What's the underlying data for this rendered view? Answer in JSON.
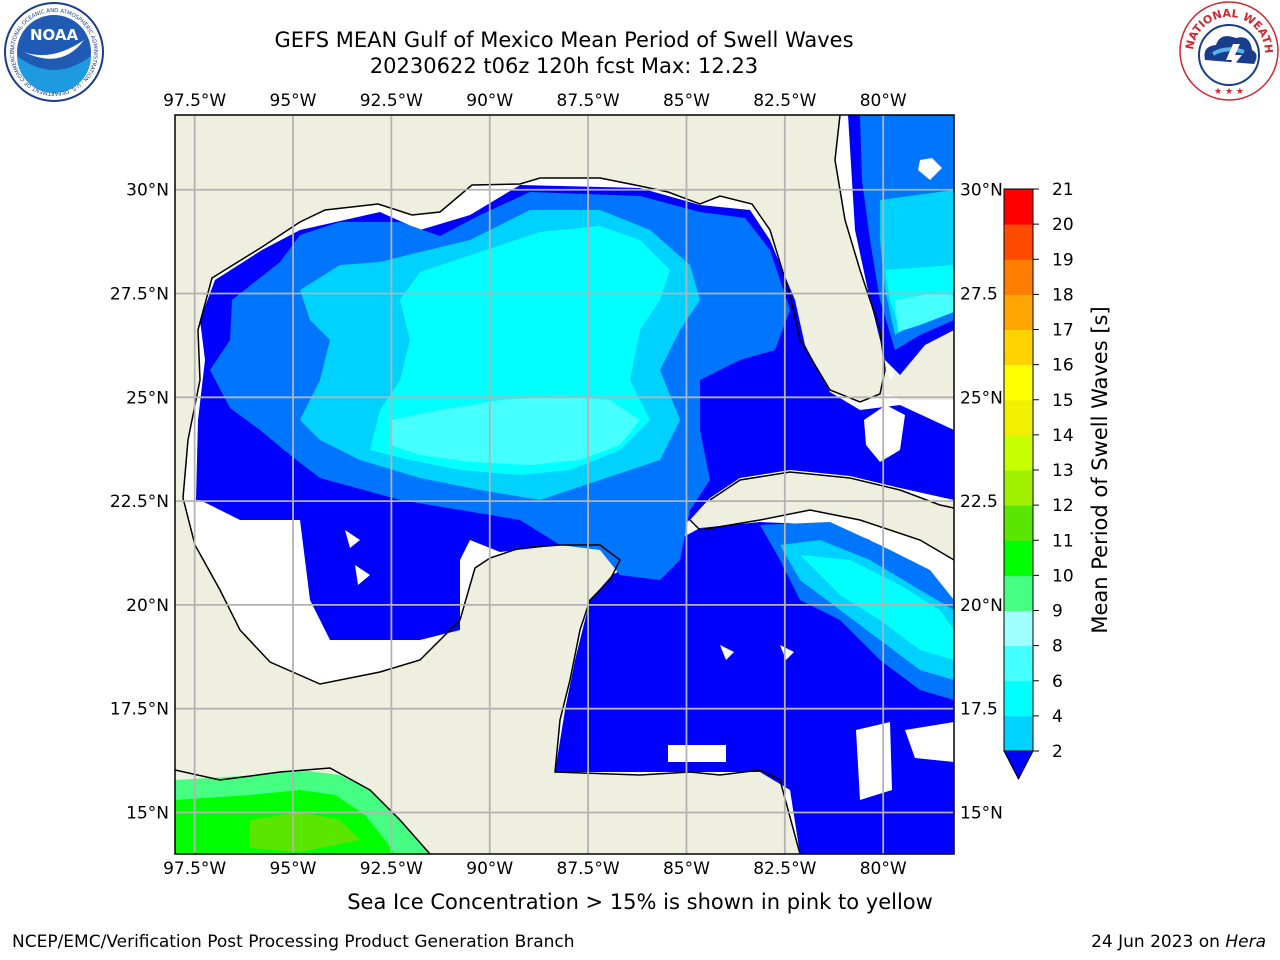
{
  "title": {
    "line1": "GEFS MEAN Gulf of Mexico Mean Period of Swell Waves",
    "line2": "20230622 t06z 120h fcst   Max: 12.23"
  },
  "map": {
    "lon_range": [
      -98.0,
      -78.2
    ],
    "lat_range": [
      14.0,
      31.8
    ],
    "lon_ticks": [
      "97.5°W",
      "95°W",
      "92.5°W",
      "90°W",
      "87.5°W",
      "85°W",
      "82.5°W",
      "80°W"
    ],
    "lat_ticks_left": [
      "30°N",
      "27.5°N",
      "25°N",
      "22.5°N",
      "20°N",
      "17.5°N",
      "15°N"
    ],
    "lat_ticks_right": [
      "30°N",
      "27.5",
      "25°N",
      "22.5",
      "20°N",
      "17.5",
      "15°N"
    ],
    "colors": {
      "land": "#efefdf",
      "grid": "#b3b3b3",
      "coast": "#000000"
    }
  },
  "colorbar": {
    "label": "Mean Period of Swell Waves [s]",
    "ticks": [
      "2",
      "4",
      "6",
      "8",
      "9",
      "10",
      "11",
      "12",
      "13",
      "14",
      "15",
      "16",
      "17",
      "18",
      "19",
      "20",
      "21"
    ],
    "colors": [
      "#0076ff",
      "#00d2ff",
      "#00ffff",
      "#46ffff",
      "#a0ffff",
      "#46ff82",
      "#00ff00",
      "#5ae600",
      "#a0f000",
      "#c8ff00",
      "#f0f000",
      "#ffff00",
      "#ffd200",
      "#ffa500",
      "#ff7d00",
      "#ff4b00",
      "#ff0000"
    ],
    "under_color": "#0000ff"
  },
  "footer": {
    "note": "Sea Ice Concentration > 15% is shown in pink to yellow",
    "left": "NCEP/EMC/Verification Post Processing Product Generation Branch",
    "right_date": "24 Jun 2023 on ",
    "right_host": "Hera"
  },
  "logos": {
    "noaa": "NOAA",
    "nws": "NATIONAL WEATHER SERVICE"
  }
}
